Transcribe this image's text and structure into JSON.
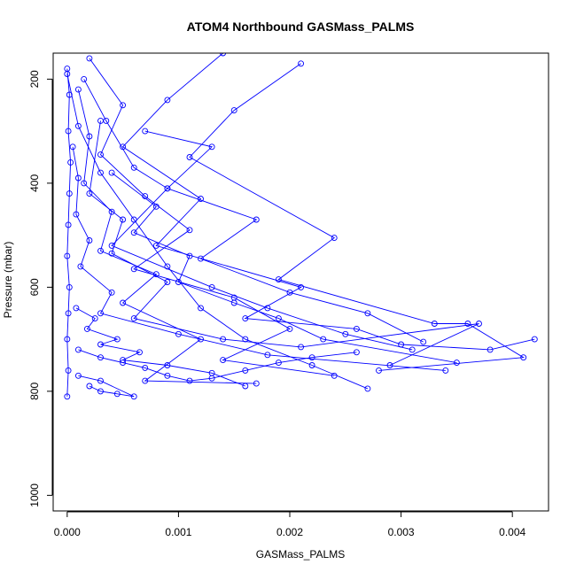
{
  "chart_data": {
    "type": "line",
    "title": "ATOM4 Northbound GASMass_PALMS",
    "xlabel": "GASMass_PALMS",
    "ylabel": "Pressure (mbar)",
    "xlim": [
      -0.000126,
      0.004325
    ],
    "ylim": [
      1030,
      150
    ],
    "y_reversed": true,
    "x_ticks": [
      0.0,
      0.001,
      0.002,
      0.003,
      0.004
    ],
    "x_tick_labels": [
      "0.000",
      "0.001",
      "0.002",
      "0.003",
      "0.004"
    ],
    "y_ticks": [
      200,
      400,
      600,
      800,
      1000
    ],
    "y_tick_labels": [
      "200",
      "400",
      "600",
      "800",
      "1000"
    ],
    "grid": false,
    "legend": "none",
    "series_color": "#0000FF",
    "marker": "open-circle",
    "series": [
      {
        "x": [
          0.0,
          2e-05,
          1e-05,
          3e-05,
          2e-05,
          1e-05,
          0.0,
          2e-05,
          1e-05,
          0.0,
          1e-05,
          0.0
        ],
        "y": [
          180,
          230,
          300,
          360,
          420,
          480,
          540,
          600,
          650,
          700,
          760,
          810
        ]
      },
      {
        "x": [
          0.0,
          0.0001,
          0.0003,
          0.0006,
          0.0009,
          0.0012,
          0.0016,
          0.0022,
          0.0027
        ],
        "y": [
          190,
          290,
          380,
          470,
          560,
          640,
          700,
          750,
          795
        ]
      },
      {
        "x": [
          0.0014,
          0.0009,
          0.0005,
          0.0012,
          0.0008,
          0.0021,
          0.0016,
          0.0026,
          0.003,
          0.0038,
          0.0042
        ],
        "y": [
          150,
          240,
          330,
          430,
          520,
          600,
          660,
          680,
          710,
          720,
          700
        ]
      },
      {
        "x": [
          0.0021,
          0.0015,
          0.0011,
          0.0024,
          0.0019,
          0.0033,
          0.0036,
          0.0041,
          0.0028
        ],
        "y": [
          170,
          260,
          350,
          505,
          585,
          670,
          670,
          735,
          760
        ]
      },
      {
        "x": [
          0.00015,
          0.00035,
          0.0006,
          0.0009,
          0.0004,
          0.0013,
          0.0018,
          0.0025,
          0.0031
        ],
        "y": [
          200,
          280,
          370,
          410,
          520,
          600,
          640,
          690,
          720
        ]
      },
      {
        "x": [
          0.0002,
          0.0005,
          0.0003,
          0.0007,
          0.0011,
          0.0006,
          0.0015,
          0.002,
          0.0014,
          0.0024
        ],
        "y": [
          160,
          250,
          345,
          425,
          490,
          565,
          620,
          680,
          740,
          770
        ]
      },
      {
        "x": [
          0.0001,
          0.0002,
          0.00015,
          0.0004,
          0.0003,
          0.0008,
          0.0005,
          0.0012,
          0.0007,
          0.0017
        ],
        "y": [
          220,
          310,
          400,
          455,
          530,
          575,
          630,
          700,
          780,
          785
        ]
      },
      {
        "x": [
          5e-05,
          0.0001,
          8e-05,
          0.0002,
          0.00012,
          0.0004,
          0.0003,
          0.001,
          0.0018,
          0.0034
        ],
        "y": [
          330,
          390,
          460,
          510,
          560,
          610,
          650,
          690,
          730,
          760
        ]
      },
      {
        "x": [
          0.0003,
          0.0002,
          0.0005,
          0.0004,
          0.0009,
          0.0006,
          0.0014,
          0.0021,
          0.0037,
          0.0029
        ],
        "y": [
          280,
          420,
          470,
          535,
          590,
          660,
          700,
          715,
          670,
          750
        ]
      },
      {
        "x": [
          0.0007,
          0.0013,
          0.0009,
          0.0017,
          0.0012,
          0.002,
          0.0027,
          0.0032
        ],
        "y": [
          300,
          330,
          410,
          470,
          545,
          610,
          650,
          705
        ]
      },
      {
        "x": [
          0.0004,
          0.0008,
          0.0006,
          0.0011,
          0.001,
          0.0015,
          0.0019,
          0.0023,
          0.0035
        ],
        "y": [
          380,
          445,
          495,
          540,
          590,
          630,
          660,
          700,
          745
        ]
      },
      {
        "x": [
          8e-05,
          0.00025,
          0.00018,
          0.00045,
          0.0003,
          0.00065,
          0.0005,
          0.0009,
          0.0013,
          0.0016
        ],
        "y": [
          640,
          660,
          680,
          700,
          710,
          725,
          740,
          750,
          765,
          790
        ]
      },
      {
        "x": [
          0.0001,
          0.0003,
          0.0005,
          0.0007,
          0.0009,
          0.0011,
          0.0013,
          0.0016,
          0.0019,
          0.0022,
          0.0026
        ],
        "y": [
          720,
          735,
          745,
          755,
          770,
          780,
          775,
          760,
          745,
          735,
          725
        ]
      },
      {
        "x": [
          0.0002,
          0.0003,
          0.00045,
          0.0006,
          0.0003,
          0.0001
        ],
        "y": [
          790,
          800,
          805,
          810,
          780,
          770
        ]
      }
    ]
  }
}
